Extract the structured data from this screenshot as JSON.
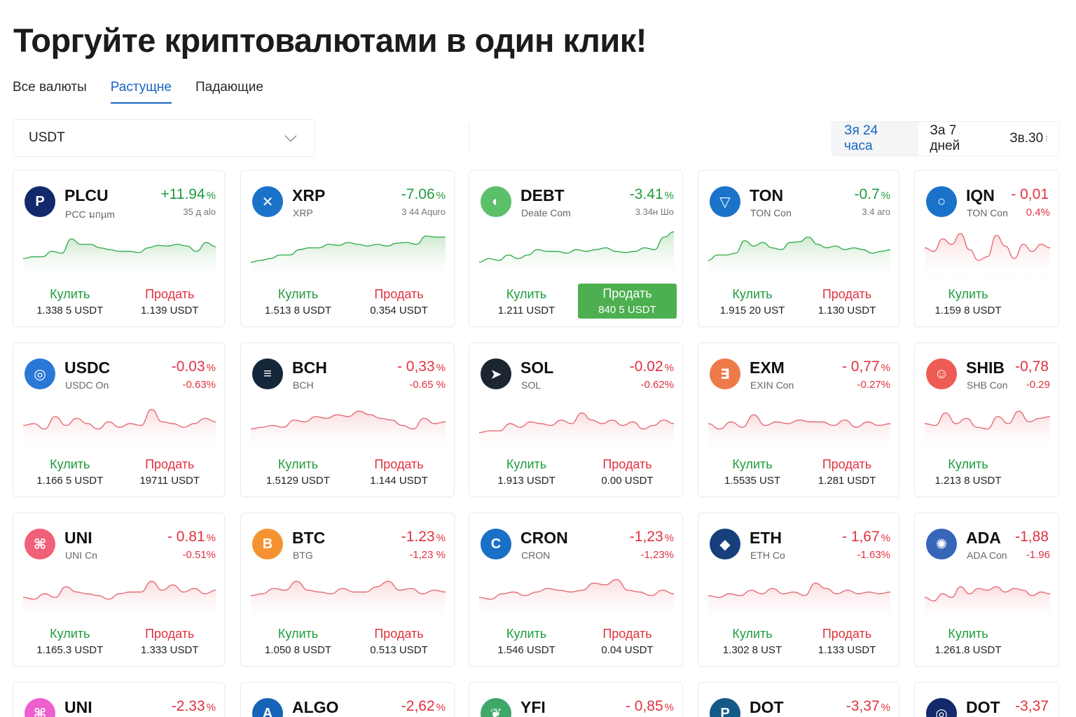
{
  "header": {
    "title": "Торгуйте криптовалютами в один клик!"
  },
  "tabs": [
    {
      "label": "Все валюты",
      "active": false
    },
    {
      "label": "Растущне",
      "active": true
    },
    {
      "label": "Падающие",
      "active": false
    }
  ],
  "currency_select": {
    "value": "USDT",
    "icon": "chevron-down-icon"
  },
  "period": [
    {
      "label": "Зя 24 часа",
      "active": true
    },
    {
      "label": "За 7 дней",
      "active": false
    },
    {
      "label": "Зв.30",
      "active": false,
      "extra": "⁝"
    }
  ],
  "colors": {
    "accent": "#1565c0",
    "up": "#1e9b3c",
    "down": "#e0323f",
    "buy_fill": "#4caf50"
  },
  "labels": {
    "buy": "Кулить",
    "sell": "Продать"
  },
  "cards": [
    {
      "symbol": "PLCU",
      "name": "PCC มกµm",
      "change": "+11.94",
      "pct": "%",
      "change2": "35 д аlо",
      "trend": "up",
      "icon_bg": "#13296b",
      "icon_glyph": "P",
      "icon": "plcu-logo-icon",
      "buy": "1.338 5 USDT",
      "sell": "1.139 USDT",
      "sell_filled": false
    },
    {
      "symbol": "XRP",
      "name": "XRP",
      "change": "-7.06",
      "pct": "%",
      "change2": "3 44 Aquro",
      "trend": "up",
      "icon_bg": "#1a73c9",
      "icon_glyph": "✕",
      "icon": "xrp-logo-icon",
      "buy": "1.513 8 USDT",
      "sell": "0.354 USDT",
      "sell_filled": false
    },
    {
      "symbol": "DEBT",
      "name": "Deate Com",
      "change": "-3.41",
      "pct": "%",
      "change2": "3.34н Шо",
      "trend": "up",
      "icon_bg": "#5cbf6a",
      "icon_glyph": "◐",
      "icon": "debt-logo-icon",
      "buy": "1.211 USDT",
      "sell": "840 5 USDT",
      "sell_filled": true
    },
    {
      "symbol": "TON",
      "name": "TON Con",
      "change": "-0.7",
      "pct": "%",
      "change2": "3.4 аго",
      "trend": "up",
      "icon_bg": "#1a73c9",
      "icon_glyph": "▽",
      "icon": "ton-logo-icon",
      "buy": "1.915 20 UST",
      "sell": "1.130 USDT",
      "sell_filled": false
    },
    {
      "symbol": "IQN",
      "name": "TON Con",
      "change": "- 0,01",
      "pct": "",
      "change2": "0.4%",
      "trend": "down",
      "icon_bg": "#1a73c9",
      "icon_glyph": "○",
      "icon": "iqn-logo-icon",
      "buy": "1.159 8 USDT",
      "sell": "",
      "sell_filled": false
    },
    {
      "symbol": "USDC",
      "name": "USDC On",
      "change": "-0.03",
      "pct": "%",
      "change2": "-0.63%",
      "trend": "down",
      "icon_bg": "#2a78d6",
      "icon_glyph": "◎",
      "icon": "usdc-logo-icon",
      "buy": "1.166 5 USDT",
      "sell": "19711 USDT",
      "sell_filled": false
    },
    {
      "symbol": "BCH",
      "name": "BCH",
      "change": "- 0,33",
      "pct": "%",
      "change2": "-0.65 %",
      "trend": "down",
      "icon_bg": "#14263a",
      "icon_glyph": "≡",
      "icon": "bch-logo-icon",
      "buy": "1.5129 USDT",
      "sell": "1.144 USDT",
      "sell_filled": false
    },
    {
      "symbol": "SOL",
      "name": "SOL",
      "change": "-0.02",
      "pct": "%",
      "change2": "-0.62%",
      "trend": "down",
      "icon_bg": "#1c2630",
      "icon_glyph": "➤",
      "icon": "sol-logo-icon",
      "buy": "1.913 USDT",
      "sell": "0.00 USDT",
      "sell_filled": false
    },
    {
      "symbol": "EXM",
      "name": "EXIN Con",
      "change": "- 0,77",
      "pct": "%",
      "change2": "-0.27%",
      "trend": "down",
      "icon_bg": "#ee7a4a",
      "icon_glyph": "∃",
      "icon": "exm-logo-icon",
      "buy": "1.5535 UST",
      "sell": "1.281 USDT",
      "sell_filled": false
    },
    {
      "symbol": "SHIB",
      "name": "SHB Con",
      "change": "-0,78",
      "pct": "",
      "change2": "-0.29",
      "trend": "down",
      "icon_bg": "#ee5c55",
      "icon_glyph": "☺",
      "icon": "shib-logo-icon",
      "buy": "1.213 8 USDT",
      "sell": "",
      "sell_filled": false
    },
    {
      "symbol": "UNI",
      "name": "UNI Cn",
      "change": "- 0.81",
      "pct": "%",
      "change2": "-0.51%",
      "trend": "down",
      "icon_bg": "#f06078",
      "icon_glyph": "⌘",
      "icon": "uni-logo-icon",
      "buy": "1.165.3 USDT",
      "sell": "1.333 USDT",
      "sell_filled": false
    },
    {
      "symbol": "BTC",
      "name": "BTG",
      "change": "-1.23",
      "pct": "%",
      "change2": "-1,23 %",
      "trend": "down",
      "icon_bg": "#f59332",
      "icon_glyph": "B",
      "icon": "btc-logo-icon",
      "buy": "1.050 8 USDT",
      "sell": "0.513 USDT",
      "sell_filled": false
    },
    {
      "symbol": "CRON",
      "name": "CRON",
      "change": "-1,23",
      "pct": "%",
      "change2": "-1,23%",
      "trend": "down",
      "icon_bg": "#1a6fc8",
      "icon_glyph": "C",
      "icon": "cron-logo-icon",
      "buy": "1.546 USDT",
      "sell": "0.04 USDT",
      "sell_filled": false
    },
    {
      "symbol": "ETH",
      "name": "ETH Co",
      "change": "- 1,67",
      "pct": "%",
      "change2": "-1.63%",
      "trend": "down",
      "icon_bg": "#163f7c",
      "icon_glyph": "◆",
      "icon": "eth-logo-icon",
      "buy": "1.302 8 UST",
      "sell": "1.133 USDT",
      "sell_filled": false
    },
    {
      "symbol": "ADA",
      "name": "ADA Con",
      "change": "-1,88",
      "pct": "",
      "change2": "-1.96",
      "trend": "down",
      "icon_bg": "#3566b8",
      "icon_glyph": "✺",
      "icon": "ada-logo-icon",
      "buy": "1.261.8 USDT",
      "sell": "",
      "sell_filled": false
    },
    {
      "symbol": "UNI",
      "name": "",
      "change": "-2.33",
      "pct": "%",
      "change2": "",
      "trend": "down",
      "icon_bg": "#ee5fcf",
      "icon_glyph": "⌘",
      "icon": "uni-logo-icon",
      "buy": "",
      "sell": "",
      "sell_filled": false
    },
    {
      "symbol": "ALGO",
      "name": "",
      "change": "-2,62",
      "pct": "%",
      "change2": "",
      "trend": "down",
      "icon_bg": "#1564b8",
      "icon_glyph": "A",
      "icon": "algo-logo-icon",
      "buy": "",
      "sell": "",
      "sell_filled": false
    },
    {
      "symbol": "YFI",
      "name": "",
      "change": "- 0,85",
      "pct": "%",
      "change2": "",
      "trend": "down",
      "icon_bg": "#3fa76a",
      "icon_glyph": "❦",
      "icon": "yfi-logo-icon",
      "buy": "",
      "sell": "",
      "sell_filled": false
    },
    {
      "symbol": "DOT",
      "name": "",
      "change": "-3,37",
      "pct": "%",
      "change2": "",
      "trend": "down",
      "icon_bg": "#145a86",
      "icon_glyph": "P",
      "icon": "dot-logo-icon",
      "buy": "",
      "sell": "",
      "sell_filled": false
    },
    {
      "symbol": "DOT",
      "name": "",
      "change": "-3,37",
      "pct": "",
      "change2": "",
      "trend": "down",
      "icon_bg": "#13296b",
      "icon_glyph": "◎",
      "icon": "dot-logo-icon",
      "buy": "",
      "sell": "",
      "sell_filled": false
    }
  ]
}
